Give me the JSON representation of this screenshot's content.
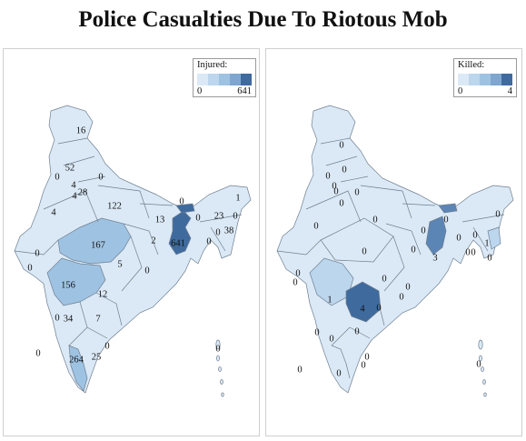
{
  "title": "Police Casualties Due To Riotous Mob",
  "colors": {
    "ramp": [
      "#dbe9f6",
      "#bcd6ee",
      "#9ec2e2",
      "#7ea6cf",
      "#5b85b4",
      "#3f6a9e"
    ]
  },
  "injured": {
    "legend": {
      "title": "Injured:",
      "min": "0",
      "max": "641"
    },
    "regions": [
      {
        "id": "jk",
        "value": "16",
        "level": 0
      },
      {
        "id": "hp",
        "value": "52",
        "level": 0
      },
      {
        "id": "pb",
        "value": "0",
        "level": 0
      },
      {
        "id": "ch",
        "value": "4",
        "level": 0
      },
      {
        "id": "uk",
        "value": "0",
        "level": 0
      },
      {
        "id": "hr",
        "value": "28",
        "level": 0
      },
      {
        "id": "dl",
        "value": "4",
        "level": 0
      },
      {
        "id": "rj",
        "value": "4",
        "level": 0
      },
      {
        "id": "up",
        "value": "122",
        "level": 0
      },
      {
        "id": "bh",
        "value": "13",
        "level": 0
      },
      {
        "id": "sk",
        "value": "0",
        "level": 0
      },
      {
        "id": "ar",
        "value": "1",
        "level": 0
      },
      {
        "id": "as",
        "value": "23",
        "level": 0
      },
      {
        "id": "ml",
        "value": "0",
        "level": 0
      },
      {
        "id": "nl",
        "value": "0",
        "level": 0
      },
      {
        "id": "mn",
        "value": "38",
        "level": 0
      },
      {
        "id": "tr",
        "value": "0",
        "level": 0
      },
      {
        "id": "mz",
        "value": "0",
        "level": 0
      },
      {
        "id": "jh",
        "value": "2",
        "level": 0
      },
      {
        "id": "wb",
        "value": "641",
        "level": 5
      },
      {
        "id": "gj",
        "value": "0",
        "level": 0
      },
      {
        "id": "dd",
        "value": "0",
        "level": 0
      },
      {
        "id": "mp",
        "value": "167",
        "level": 2
      },
      {
        "id": "cg",
        "value": "5",
        "level": 0
      },
      {
        "id": "od",
        "value": "0",
        "level": 0
      },
      {
        "id": "mh",
        "value": "156",
        "level": 2
      },
      {
        "id": "tg",
        "value": "12",
        "level": 0
      },
      {
        "id": "ap",
        "value": "7",
        "level": 0
      },
      {
        "id": "ga",
        "value": "0",
        "level": 0
      },
      {
        "id": "ka",
        "value": "34",
        "level": 0
      },
      {
        "id": "tn",
        "value": "25",
        "level": 0
      },
      {
        "id": "kl",
        "value": "264",
        "level": 2
      },
      {
        "id": "py",
        "value": "0",
        "level": 0
      },
      {
        "id": "ld",
        "value": "0",
        "level": 0
      },
      {
        "id": "an",
        "value": "0",
        "level": 0
      }
    ]
  },
  "killed": {
    "legend": {
      "title": "Killed:",
      "min": "0",
      "max": "4"
    },
    "regions": [
      {
        "id": "jk",
        "value": "0",
        "level": 0
      },
      {
        "id": "hp",
        "value": "0",
        "level": 0
      },
      {
        "id": "pb",
        "value": "0",
        "level": 0
      },
      {
        "id": "ch",
        "value": "0",
        "level": 0
      },
      {
        "id": "uk",
        "value": "0",
        "level": 0
      },
      {
        "id": "hr",
        "value": "0",
        "level": 0
      },
      {
        "id": "dl",
        "value": "0",
        "level": 0
      },
      {
        "id": "rj",
        "value": "0",
        "level": 0
      },
      {
        "id": "up",
        "value": "0",
        "level": 0
      },
      {
        "id": "bh",
        "value": "0",
        "level": 0
      },
      {
        "id": "sk",
        "value": "0",
        "level": 0
      },
      {
        "id": "ar",
        "value": "0",
        "level": 0
      },
      {
        "id": "as",
        "value": "0",
        "level": 0
      },
      {
        "id": "ml",
        "value": "0",
        "level": 0
      },
      {
        "id": "nl",
        "value": "1",
        "level": 1
      },
      {
        "id": "mn",
        "value": "0",
        "level": 0
      },
      {
        "id": "tr",
        "value": "0",
        "level": 0
      },
      {
        "id": "mz",
        "value": "0",
        "level": 0
      },
      {
        "id": "jh",
        "value": "0",
        "level": 0
      },
      {
        "id": "wb",
        "value": "3",
        "level": 4
      },
      {
        "id": "gj",
        "value": "0",
        "level": 0
      },
      {
        "id": "dd",
        "value": "0",
        "level": 0
      },
      {
        "id": "mp",
        "value": "0",
        "level": 0
      },
      {
        "id": "cg",
        "value": "0",
        "level": 0
      },
      {
        "id": "od",
        "value": "0",
        "level": 0
      },
      {
        "id": "mh",
        "value": "1",
        "level": 1
      },
      {
        "id": "tg",
        "value": "4",
        "level": 5
      },
      {
        "id": "ap",
        "value": "0",
        "level": 0
      },
      {
        "id": "ga",
        "value": "0",
        "level": 0
      },
      {
        "id": "ka",
        "value": "0",
        "level": 0
      },
      {
        "id": "tn",
        "value": "0",
        "level": 0
      },
      {
        "id": "kl",
        "value": "0",
        "level": 0
      },
      {
        "id": "py",
        "value": "0",
        "level": 0
      },
      {
        "id": "ld",
        "value": "0",
        "level": 0
      },
      {
        "id": "an",
        "value": "0",
        "level": 0
      },
      {
        "id": "x1",
        "value": "0",
        "level": 0
      },
      {
        "id": "x2",
        "value": "0",
        "level": 0
      }
    ]
  }
}
